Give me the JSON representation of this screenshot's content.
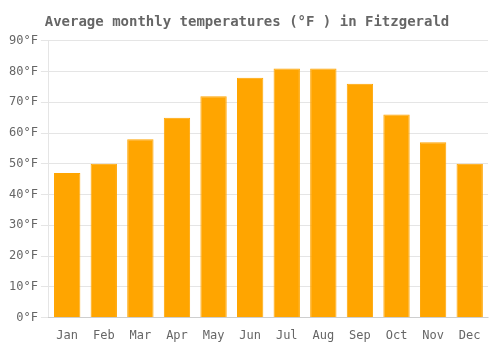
{
  "chart_data": {
    "type": "bar",
    "title": "Average monthly temperatures (°F ) in Fitzgerald",
    "categories": [
      "Jan",
      "Feb",
      "Mar",
      "Apr",
      "May",
      "Jun",
      "Jul",
      "Aug",
      "Sep",
      "Oct",
      "Nov",
      "Dec"
    ],
    "values": [
      47,
      50,
      58,
      65,
      72,
      78,
      81,
      81,
      76,
      66,
      57,
      50
    ],
    "color": "#FFA500",
    "ylim": [
      0,
      90
    ],
    "yticks": [
      {
        "value": 0,
        "label": "0°F"
      },
      {
        "value": 10,
        "label": "10°F"
      },
      {
        "value": 20,
        "label": "20°F"
      },
      {
        "value": 30,
        "label": "30°F"
      },
      {
        "value": 40,
        "label": "40°F"
      },
      {
        "value": 50,
        "label": "50°F"
      },
      {
        "value": 60,
        "label": "60°F"
      },
      {
        "value": 70,
        "label": "70°F"
      },
      {
        "value": 80,
        "label": "80°F"
      },
      {
        "value": 90,
        "label": "90°F"
      }
    ],
    "grid": true
  }
}
